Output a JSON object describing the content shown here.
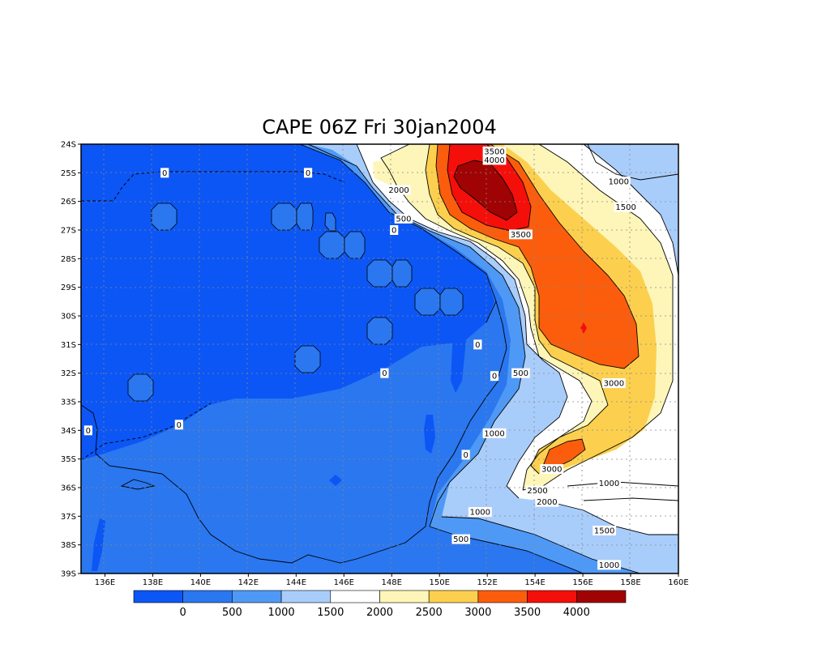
{
  "title": "CAPE 06Z Fri 30jan2004",
  "chart_data": {
    "type": "filled-contour-map",
    "title": "CAPE 06Z Fri 30jan2004",
    "x_ticks": [
      "136E",
      "138E",
      "140E",
      "142E",
      "144E",
      "146E",
      "148E",
      "150E",
      "152E",
      "154E",
      "156E",
      "158E",
      "160E"
    ],
    "y_ticks": [
      "24S",
      "25S",
      "26S",
      "27S",
      "28S",
      "29S",
      "30S",
      "31S",
      "32S",
      "33S",
      "34S",
      "35S",
      "36S",
      "37S",
      "38S",
      "39S"
    ],
    "lon_range": [
      135,
      160
    ],
    "lat_range": [
      -39,
      -24
    ],
    "grid": true,
    "legend": "bottom colorbar",
    "levels": [
      "0",
      "500",
      "1000",
      "1500",
      "2000",
      "2500",
      "3000",
      "3500",
      "4000"
    ],
    "colors": [
      "#0b56f5",
      "#2a77f0",
      "#4f99f6",
      "#a9cdfb",
      "#ffffff",
      "#fdf6b8",
      "#fcd04e",
      "#fb5d0d",
      "#f50f0a",
      "#a00303"
    ],
    "contour_labels": [
      {
        "text": "0",
        "lon": 138.5,
        "lat": -25
      },
      {
        "text": "0",
        "lon": 144.5,
        "lat": -25
      },
      {
        "text": "2000",
        "lon": 148.3,
        "lat": -25.6
      },
      {
        "text": "3500",
        "lon": 152.3,
        "lat": -24.25
      },
      {
        "text": "4000",
        "lon": 152.3,
        "lat": -24.55
      },
      {
        "text": "1000",
        "lon": 157.5,
        "lat": -25.3
      },
      {
        "text": "1500",
        "lon": 157.8,
        "lat": -26.2
      },
      {
        "text": "500",
        "lon": 148.5,
        "lat": -26.6
      },
      {
        "text": "0",
        "lon": 148.1,
        "lat": -27
      },
      {
        "text": "3500",
        "lon": 153.4,
        "lat": -27.15
      },
      {
        "text": "0",
        "lon": 151.6,
        "lat": -31
      },
      {
        "text": "0",
        "lon": 147.7,
        "lat": -32
      },
      {
        "text": "0",
        "lon": 152.3,
        "lat": -32.1
      },
      {
        "text": "500",
        "lon": 153.4,
        "lat": -32
      },
      {
        "text": "3000",
        "lon": 157.3,
        "lat": -32.35
      },
      {
        "text": "0",
        "lon": 139.1,
        "lat": -33.8
      },
      {
        "text": "0",
        "lon": 135.3,
        "lat": -34
      },
      {
        "text": "1000",
        "lon": 152.3,
        "lat": -34.1
      },
      {
        "text": "0",
        "lon": 151.1,
        "lat": -34.85
      },
      {
        "text": "3000",
        "lon": 154.7,
        "lat": -35.35
      },
      {
        "text": "1000",
        "lon": 157.1,
        "lat": -35.85
      },
      {
        "text": "2500",
        "lon": 154.1,
        "lat": -36.1
      },
      {
        "text": "2000",
        "lon": 154.5,
        "lat": -36.5
      },
      {
        "text": "1000",
        "lon": 151.7,
        "lat": -36.85
      },
      {
        "text": "1500",
        "lon": 156.9,
        "lat": -37.5
      },
      {
        "text": "500",
        "lon": 150.9,
        "lat": -37.8
      },
      {
        "text": "1000",
        "lon": 157.1,
        "lat": -38.7
      }
    ]
  }
}
